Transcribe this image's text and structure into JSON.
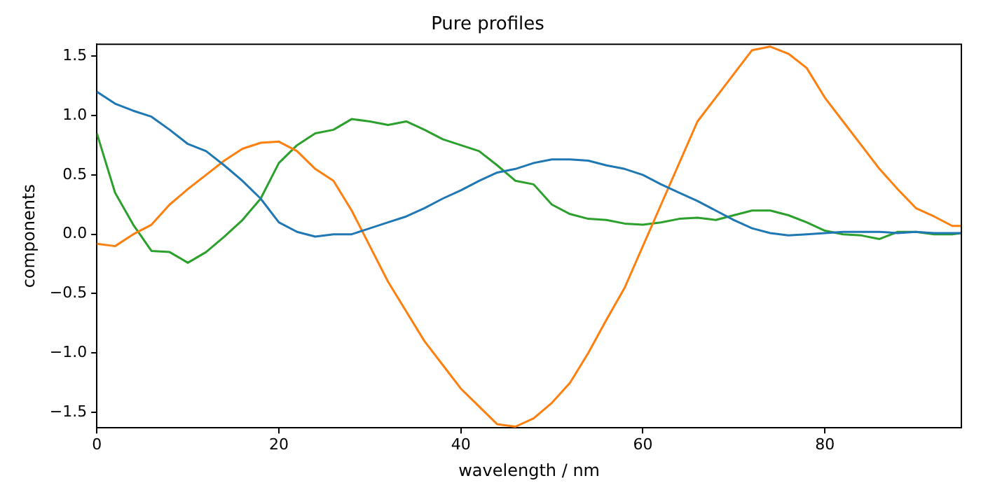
{
  "chart_data": {
    "type": "line",
    "title": "Pure profiles",
    "xlabel": "wavelength / nm",
    "ylabel": "components",
    "x": [
      0,
      2,
      4,
      6,
      8,
      10,
      12,
      14,
      16,
      18,
      20,
      22,
      24,
      26,
      28,
      30,
      32,
      34,
      36,
      38,
      40,
      42,
      44,
      46,
      48,
      50,
      52,
      54,
      56,
      58,
      60,
      62,
      64,
      66,
      68,
      70,
      72,
      74,
      76,
      78,
      80,
      82,
      84,
      86,
      88,
      90,
      92,
      94,
      95
    ],
    "series": [
      {
        "color": "#1f77b4",
        "values": [
          1.2,
          1.1,
          1.04,
          0.99,
          0.88,
          0.76,
          0.7,
          0.58,
          0.45,
          0.3,
          0.1,
          0.02,
          -0.02,
          0.0,
          0.0,
          0.05,
          0.1,
          0.15,
          0.22,
          0.3,
          0.37,
          0.45,
          0.52,
          0.55,
          0.6,
          0.63,
          0.63,
          0.62,
          0.58,
          0.55,
          0.5,
          0.42,
          0.35,
          0.28,
          0.2,
          0.12,
          0.05,
          0.01,
          -0.01,
          0.0,
          0.01,
          0.02,
          0.02,
          0.02,
          0.01,
          0.02,
          0.01,
          0.01,
          0.01
        ]
      },
      {
        "color": "#ff7f0e",
        "values": [
          -0.08,
          -0.1,
          0.0,
          0.08,
          0.25,
          0.38,
          0.5,
          0.62,
          0.72,
          0.77,
          0.78,
          0.7,
          0.55,
          0.45,
          0.2,
          -0.1,
          -0.4,
          -0.65,
          -0.9,
          -1.1,
          -1.3,
          -1.45,
          -1.6,
          -1.62,
          -1.55,
          -1.42,
          -1.25,
          -1.0,
          -0.72,
          -0.45,
          -0.1,
          0.25,
          0.6,
          0.95,
          1.15,
          1.35,
          1.55,
          1.58,
          1.52,
          1.4,
          1.15,
          0.95,
          0.75,
          0.55,
          0.38,
          0.22,
          0.15,
          0.07,
          0.07
        ]
      },
      {
        "color": "#2ca02c",
        "values": [
          0.85,
          0.35,
          0.08,
          -0.14,
          -0.15,
          -0.24,
          -0.15,
          -0.02,
          0.12,
          0.3,
          0.6,
          0.75,
          0.85,
          0.88,
          0.97,
          0.95,
          0.92,
          0.95,
          0.88,
          0.8,
          0.75,
          0.7,
          0.58,
          0.45,
          0.42,
          0.25,
          0.17,
          0.13,
          0.12,
          0.09,
          0.08,
          0.1,
          0.13,
          0.14,
          0.12,
          0.16,
          0.2,
          0.2,
          0.16,
          0.1,
          0.03,
          0.0,
          -0.01,
          -0.04,
          0.02,
          0.02,
          0.0,
          0.0,
          0.01
        ]
      }
    ],
    "xlim": [
      0,
      95
    ],
    "ylim": [
      -1.63,
      1.6
    ],
    "xticks": [
      0,
      20,
      40,
      60,
      80
    ],
    "yticks": [
      {
        "value": -1.5,
        "label": "−1.5"
      },
      {
        "value": -1,
        "label": "−1.0"
      },
      {
        "value": -0.5,
        "label": "−0.5"
      },
      {
        "value": 0,
        "label": "0.0"
      },
      {
        "value": 0.5,
        "label": "0.5"
      },
      {
        "value": 1,
        "label": "1.0"
      },
      {
        "value": 1.5,
        "label": "1.5"
      }
    ],
    "grid": false,
    "legend": false,
    "marker": "none",
    "line_style": "solid"
  }
}
